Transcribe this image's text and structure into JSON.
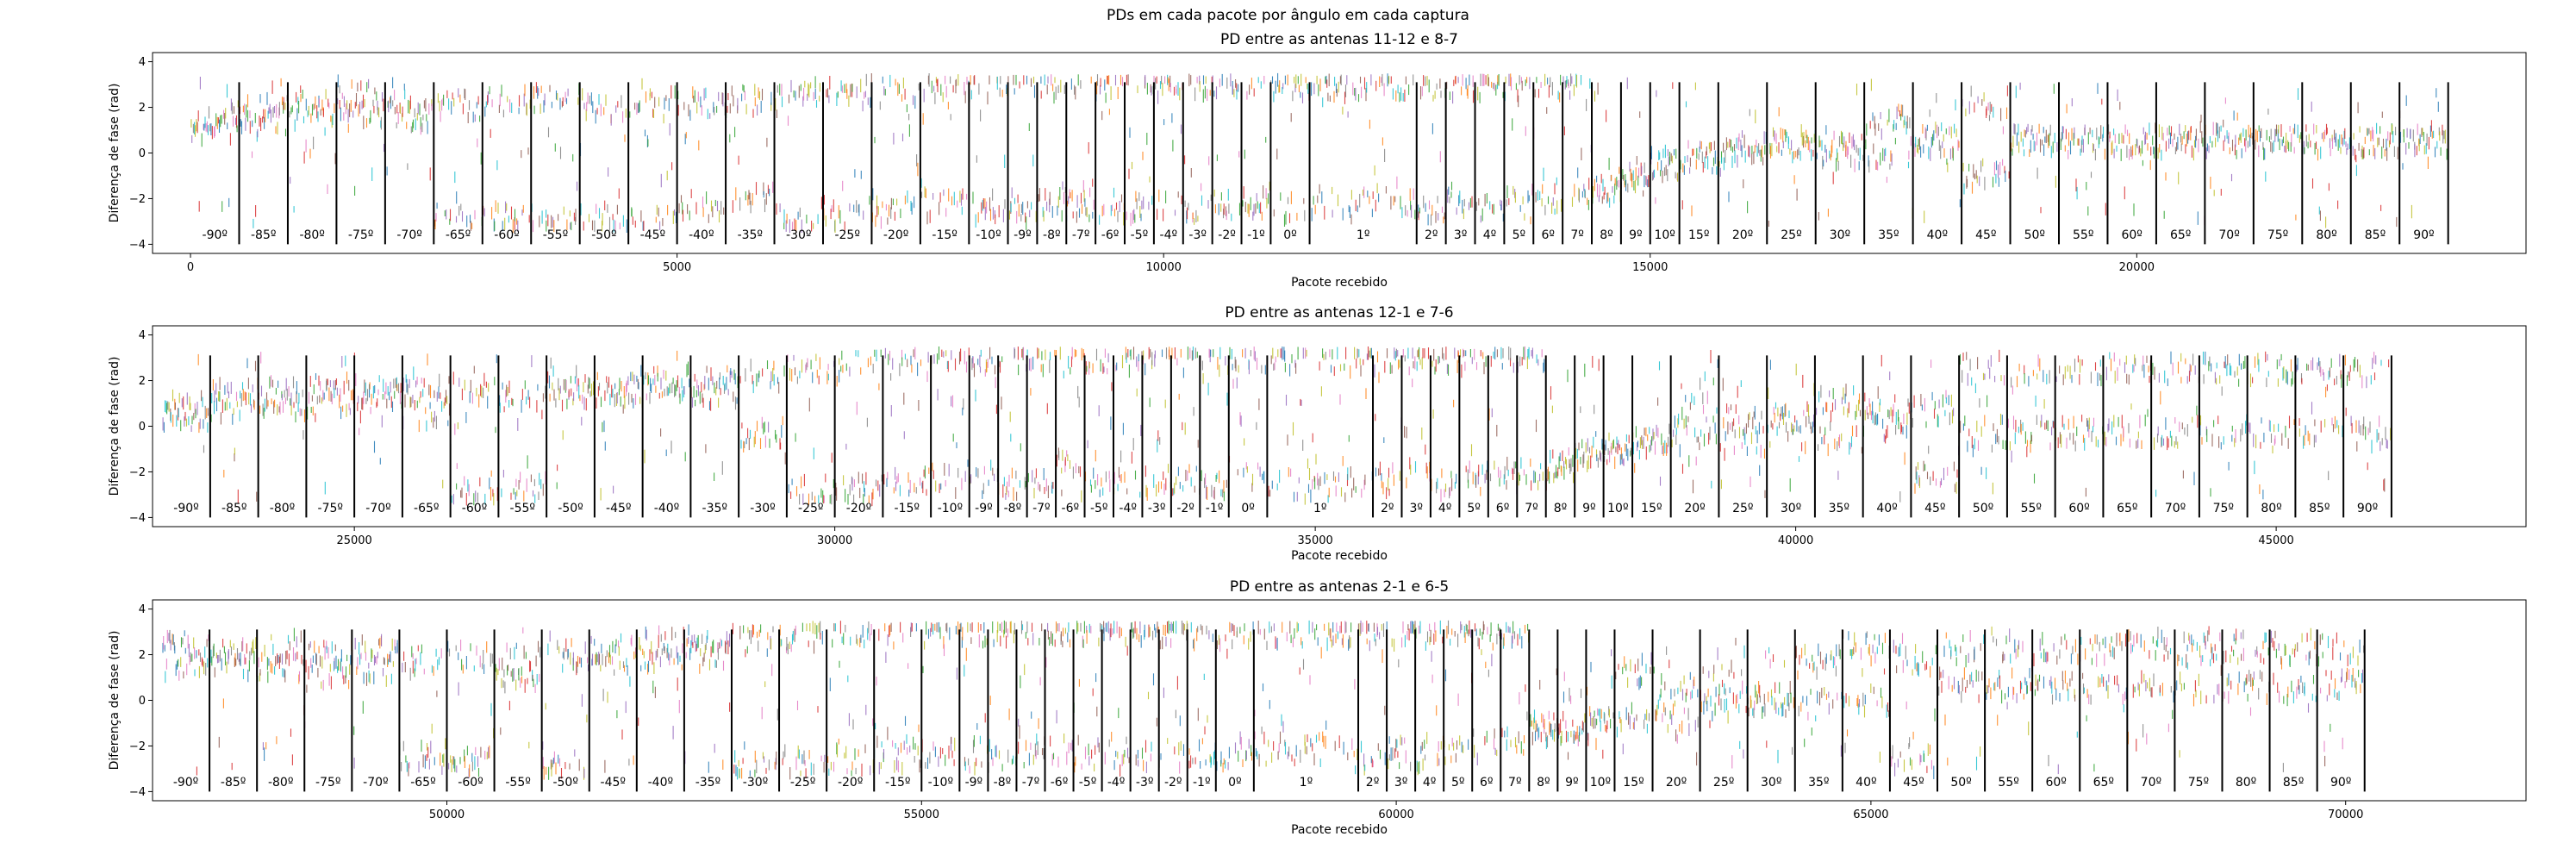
{
  "figure": {
    "suptitle": "PDs em cada pacote por ângulo em  cada captura"
  },
  "chart_data": [
    {
      "type": "scatter",
      "title": "PD entre as antenas 11-12 e 8-7",
      "xlabel": "Pacote recebido",
      "ylabel": "Diferença de fase (rad)",
      "xlim": [
        -390,
        24000
      ],
      "ylim": [
        -4.4,
        4.4
      ],
      "xticks": [
        0,
        5000,
        10000,
        15000,
        20000
      ],
      "yticks": [
        -4,
        -2,
        0,
        2,
        4
      ],
      "grid": false,
      "band_levels": [
        [
          1.0,
          1.6
        ],
        [
          1.4,
          2.1
        ],
        [
          1.7,
          2.2
        ],
        [
          1.7,
          2.6
        ],
        [
          1.5,
          2.3
        ],
        [
          2.1,
          -2.9
        ],
        [
          2.2,
          -2.9
        ],
        [
          2.3,
          -3.0
        ],
        [
          2.0,
          -3.0
        ],
        [
          2.1,
          -2.9
        ],
        [
          2.2,
          -2.3
        ],
        [
          2.3,
          -2.0
        ],
        [
          2.6,
          -3.0
        ],
        [
          2.7,
          -2.8
        ],
        [
          2.8,
          -2.5
        ],
        [
          3.0,
          -2.2
        ],
        [
          3.0,
          -2.4
        ],
        [
          3.0,
          -2.3
        ],
        [
          3.0,
          -2.2
        ],
        [
          3.0,
          -2.3
        ],
        [
          3.0,
          -2.5
        ],
        [
          3.0,
          -2.4
        ],
        [
          3.0,
          -2.3
        ],
        [
          3.0,
          -2.5
        ],
        [
          -2.3,
          3.0
        ],
        [
          -2.2,
          3.0
        ],
        [
          -2.4,
          3.0
        ],
        [
          -2.1,
          3.0
        ],
        [
          -2.5,
          3.0
        ],
        [
          -2.2,
          3.0
        ],
        [
          -2.3,
          3.0
        ],
        [
          -2.0,
          3.0
        ],
        [
          -2.1,
          3.0
        ],
        [
          -1.8,
          3.0
        ],
        [
          -1.6,
          -1.6
        ],
        [
          -1.2,
          -1.2
        ],
        [
          -0.5,
          -0.5
        ],
        [
          -0.2,
          -0.2
        ],
        [
          0.1,
          0.1
        ],
        [
          0.4,
          0.4
        ],
        [
          0.0,
          0.5
        ],
        [
          0.0,
          1.3
        ],
        [
          0.3,
          0.6
        ],
        [
          -1.0,
          2.0
        ],
        [
          0.5,
          0.5
        ]
      ],
      "angle_lines": [
        {
          "label": "-90º",
          "x": 500
        },
        {
          "label": "-85º",
          "x": 1000
        },
        {
          "label": "-80º",
          "x": 1500
        },
        {
          "label": "-75º",
          "x": 2000
        },
        {
          "label": "-70º",
          "x": 2500
        },
        {
          "label": "-65º",
          "x": 3000
        },
        {
          "label": "-60º",
          "x": 3500
        },
        {
          "label": "-55º",
          "x": 4000
        },
        {
          "label": "-50º",
          "x": 4500
        },
        {
          "label": "-45º",
          "x": 5000
        },
        {
          "label": "-40º",
          "x": 5500
        },
        {
          "label": "-35º",
          "x": 6000
        },
        {
          "label": "-30º",
          "x": 6500
        },
        {
          "label": "-25º",
          "x": 7000
        },
        {
          "label": "-20º",
          "x": 7500
        },
        {
          "label": "-15º",
          "x": 8000
        },
        {
          "label": "-10º",
          "x": 8400
        },
        {
          "label": "-9º",
          "x": 8700
        },
        {
          "label": "-8º",
          "x": 9000
        },
        {
          "label": "-7º",
          "x": 9300
        },
        {
          "label": "-6º",
          "x": 9600
        },
        {
          "label": "-5º",
          "x": 9900
        },
        {
          "label": "-4º",
          "x": 10200
        },
        {
          "label": "-3º",
          "x": 10500
        },
        {
          "label": "-2º",
          "x": 10800
        },
        {
          "label": "-1º",
          "x": 11100
        },
        {
          "label": "0º",
          "x": 11500
        },
        {
          "label": "1º",
          "x": 12600
        },
        {
          "label": "2º",
          "x": 12900
        },
        {
          "label": "3º",
          "x": 13200
        },
        {
          "label": "4º",
          "x": 13500
        },
        {
          "label": "5º",
          "x": 13800
        },
        {
          "label": "6º",
          "x": 14100
        },
        {
          "label": "7º",
          "x": 14400
        },
        {
          "label": "8º",
          "x": 14700
        },
        {
          "label": "9º",
          "x": 15000
        },
        {
          "label": "10º",
          "x": 15300
        },
        {
          "label": "15º",
          "x": 15700
        },
        {
          "label": "20º",
          "x": 16200
        },
        {
          "label": "25º",
          "x": 16700
        },
        {
          "label": "30º",
          "x": 17200
        },
        {
          "label": "35º",
          "x": 17700
        },
        {
          "label": "40º",
          "x": 18200
        },
        {
          "label": "45º",
          "x": 18700
        },
        {
          "label": "50º",
          "x": 19200
        },
        {
          "label": "55º",
          "x": 19700
        },
        {
          "label": "60º",
          "x": 20200
        },
        {
          "label": "65º",
          "x": 20700
        },
        {
          "label": "70º",
          "x": 21200
        },
        {
          "label": "75º",
          "x": 21700
        },
        {
          "label": "80º",
          "x": 22200
        },
        {
          "label": "85º",
          "x": 22700
        },
        {
          "label": "90º",
          "x": 23200
        }
      ]
    },
    {
      "type": "scatter",
      "title": "PD entre as antenas 12-1 e 7-6",
      "xlabel": "Pacote recebido",
      "ylabel": "Diferença de fase (rad)",
      "xlim": [
        22900,
        47600
      ],
      "ylim": [
        -4.4,
        4.4
      ],
      "xticks": [
        25000,
        30000,
        35000,
        40000,
        45000
      ],
      "yticks": [
        -4,
        -2,
        0,
        2,
        4
      ],
      "grid": false,
      "band_levels": [
        [
          0.5,
          0.8
        ],
        [
          0.9,
          1.3
        ],
        [
          1.0,
          1.4
        ],
        [
          1.1,
          1.6
        ],
        [
          1.2,
          1.7
        ],
        [
          1.5,
          0.6
        ],
        [
          1.6,
          -2.8
        ],
        [
          1.3,
          -2.6
        ],
        [
          1.5,
          1.8
        ],
        [
          1.7,
          1.6
        ],
        [
          1.9,
          1.8
        ],
        [
          2.0,
          1.5
        ],
        [
          2.1,
          -0.3
        ],
        [
          2.5,
          -3.0
        ],
        [
          2.8,
          -2.8
        ],
        [
          3.0,
          -2.4
        ],
        [
          3.0,
          -2.2
        ],
        [
          3.0,
          -2.3
        ],
        [
          3.0,
          -2.5
        ],
        [
          3.0,
          -2.4
        ],
        [
          3.0,
          -1.6
        ],
        [
          3.0,
          -2.3
        ],
        [
          3.0,
          -2.5
        ],
        [
          3.0,
          -2.4
        ],
        [
          -2.4,
          2.9
        ],
        [
          -2.5,
          3.0
        ],
        [
          -2.3,
          3.0
        ],
        [
          -2.6,
          3.0
        ],
        [
          -2.4,
          3.0
        ],
        [
          -2.2,
          3.0
        ],
        [
          -2.5,
          3.0
        ],
        [
          -2.3,
          3.0
        ],
        [
          -2.2,
          3.0
        ],
        [
          -2.0,
          3.0
        ],
        [
          -1.7,
          -1.7
        ],
        [
          -1.3,
          -1.3
        ],
        [
          -1.0,
          -1.0
        ],
        [
          -0.7,
          -0.7
        ],
        [
          0.8,
          -0.2
        ],
        [
          0.3,
          -0.6
        ],
        [
          0.4,
          -0.5
        ],
        [
          -0.5,
          1.0
        ],
        [
          0.0,
          0.7
        ],
        [
          -2.3,
          0.6
        ],
        [
          -0.3,
          2.5
        ]
      ],
      "angle_lines": [
        {
          "label": "-90º",
          "x": 23500
        },
        {
          "label": "-85º",
          "x": 24000
        },
        {
          "label": "-80º",
          "x": 24500
        },
        {
          "label": "-75º",
          "x": 25000
        },
        {
          "label": "-70º",
          "x": 25500
        },
        {
          "label": "-65º",
          "x": 26000
        },
        {
          "label": "-60º",
          "x": 26500
        },
        {
          "label": "-55º",
          "x": 27000
        },
        {
          "label": "-50º",
          "x": 27500
        },
        {
          "label": "-45º",
          "x": 28000
        },
        {
          "label": "-40º",
          "x": 28500
        },
        {
          "label": "-35º",
          "x": 29000
        },
        {
          "label": "-30º",
          "x": 29500
        },
        {
          "label": "-25º",
          "x": 30000
        },
        {
          "label": "-20º",
          "x": 30500
        },
        {
          "label": "-15º",
          "x": 31000
        },
        {
          "label": "-10º",
          "x": 31400
        },
        {
          "label": "-9º",
          "x": 31700
        },
        {
          "label": "-8º",
          "x": 32000
        },
        {
          "label": "-7º",
          "x": 32300
        },
        {
          "label": "-6º",
          "x": 32600
        },
        {
          "label": "-5º",
          "x": 32900
        },
        {
          "label": "-4º",
          "x": 33200
        },
        {
          "label": "-3º",
          "x": 33500
        },
        {
          "label": "-2º",
          "x": 33800
        },
        {
          "label": "-1º",
          "x": 34100
        },
        {
          "label": "0º",
          "x": 34500
        },
        {
          "label": "1º",
          "x": 35600
        },
        {
          "label": "2º",
          "x": 35900
        },
        {
          "label": "3º",
          "x": 36200
        },
        {
          "label": "4º",
          "x": 36500
        },
        {
          "label": "5º",
          "x": 36800
        },
        {
          "label": "6º",
          "x": 37100
        },
        {
          "label": "7º",
          "x": 37400
        },
        {
          "label": "8º",
          "x": 37700
        },
        {
          "label": "9º",
          "x": 38000
        },
        {
          "label": "10º",
          "x": 38300
        },
        {
          "label": "15º",
          "x": 38700
        },
        {
          "label": "20º",
          "x": 39200
        },
        {
          "label": "25º",
          "x": 39700
        },
        {
          "label": "30º",
          "x": 40200
        },
        {
          "label": "35º",
          "x": 40700
        },
        {
          "label": "40º",
          "x": 41200
        },
        {
          "label": "45º",
          "x": 41700
        },
        {
          "label": "50º",
          "x": 42200
        },
        {
          "label": "55º",
          "x": 42700
        },
        {
          "label": "60º",
          "x": 43200
        },
        {
          "label": "65º",
          "x": 43700
        },
        {
          "label": "70º",
          "x": 44200
        },
        {
          "label": "75º",
          "x": 44700
        },
        {
          "label": "80º",
          "x": 45200
        },
        {
          "label": "85º",
          "x": 45700
        },
        {
          "label": "90º",
          "x": 46200
        }
      ]
    },
    {
      "type": "scatter",
      "title": "PD entre as antenas 2-1 e 6-5",
      "xlabel": "Pacote recebido",
      "ylabel": "Diferença de fase (rad)",
      "xlim": [
        46900,
        71900
      ],
      "ylim": [
        -4.4,
        4.4
      ],
      "xticks": [
        50000,
        55000,
        60000,
        65000,
        70000
      ],
      "yticks": [
        -4,
        -2,
        0,
        2,
        4
      ],
      "grid": false,
      "band_levels": [
        [
          1.6,
          2.2
        ],
        [
          1.6,
          2.0
        ],
        [
          1.5,
          2.2
        ],
        [
          1.2,
          1.9
        ],
        [
          1.4,
          2.1
        ],
        [
          1.7,
          -2.6
        ],
        [
          1.9,
          -2.7
        ],
        [
          1.8,
          1.1
        ],
        [
          2.0,
          -2.9
        ],
        [
          2.2,
          1.7
        ],
        [
          2.4,
          1.8
        ],
        [
          2.5,
          1.9
        ],
        [
          2.6,
          -2.9
        ],
        [
          2.8,
          -2.8
        ],
        [
          3.0,
          -2.6
        ],
        [
          3.0,
          -2.4
        ],
        [
          3.0,
          -2.3
        ],
        [
          3.0,
          -2.5
        ],
        [
          3.0,
          -2.4
        ],
        [
          3.0,
          -2.3
        ],
        [
          3.0,
          -2.2
        ],
        [
          3.0,
          -2.4
        ],
        [
          3.0,
          -2.3
        ],
        [
          3.0,
          -2.5
        ],
        [
          -2.2,
          3.0
        ],
        [
          -2.3,
          3.0
        ],
        [
          -2.4,
          3.0
        ],
        [
          -2.2,
          3.0
        ],
        [
          -2.5,
          3.0
        ],
        [
          -2.3,
          3.0
        ],
        [
          -2.4,
          3.0
        ],
        [
          -2.2,
          3.0
        ],
        [
          -2.0,
          3.0
        ],
        [
          -1.8,
          3.0
        ],
        [
          -1.3,
          -1.3
        ],
        [
          -1.2,
          -1.2
        ],
        [
          -1.0,
          -1.0
        ],
        [
          -0.8,
          1.3
        ],
        [
          -0.7,
          0.4
        ],
        [
          -0.2,
          0.9
        ],
        [
          0.0,
          0.0
        ],
        [
          -0.2,
          1.7
        ],
        [
          0.0,
          2.3
        ],
        [
          -2.6,
          1.8
        ],
        [
          0.6,
          2.3
        ]
      ],
      "angle_lines": [
        {
          "label": "-90º",
          "x": 47500
        },
        {
          "label": "-85º",
          "x": 48000
        },
        {
          "label": "-80º",
          "x": 48500
        },
        {
          "label": "-75º",
          "x": 49000
        },
        {
          "label": "-70º",
          "x": 49500
        },
        {
          "label": "-65º",
          "x": 50000
        },
        {
          "label": "-60º",
          "x": 50500
        },
        {
          "label": "-55º",
          "x": 51000
        },
        {
          "label": "-50º",
          "x": 51500
        },
        {
          "label": "-45º",
          "x": 52000
        },
        {
          "label": "-40º",
          "x": 52500
        },
        {
          "label": "-35º",
          "x": 53000
        },
        {
          "label": "-30º",
          "x": 53500
        },
        {
          "label": "-25º",
          "x": 54000
        },
        {
          "label": "-20º",
          "x": 54500
        },
        {
          "label": "-15º",
          "x": 55000
        },
        {
          "label": "-10º",
          "x": 55400
        },
        {
          "label": "-9º",
          "x": 55700
        },
        {
          "label": "-8º",
          "x": 56000
        },
        {
          "label": "-7º",
          "x": 56300
        },
        {
          "label": "-6º",
          "x": 56600
        },
        {
          "label": "-5º",
          "x": 56900
        },
        {
          "label": "-4º",
          "x": 57200
        },
        {
          "label": "-3º",
          "x": 57500
        },
        {
          "label": "-2º",
          "x": 57800
        },
        {
          "label": "-1º",
          "x": 58100
        },
        {
          "label": "0º",
          "x": 58500
        },
        {
          "label": "1º",
          "x": 59600
        },
        {
          "label": "2º",
          "x": 59900
        },
        {
          "label": "3º",
          "x": 60200
        },
        {
          "label": "4º",
          "x": 60500
        },
        {
          "label": "5º",
          "x": 60800
        },
        {
          "label": "6º",
          "x": 61100
        },
        {
          "label": "7º",
          "x": 61400
        },
        {
          "label": "8º",
          "x": 61700
        },
        {
          "label": "9º",
          "x": 62000
        },
        {
          "label": "10º",
          "x": 62300
        },
        {
          "label": "15º",
          "x": 62700
        },
        {
          "label": "20º",
          "x": 63200
        },
        {
          "label": "25º",
          "x": 63700
        },
        {
          "label": "30º",
          "x": 64200
        },
        {
          "label": "35º",
          "x": 64700
        },
        {
          "label": "40º",
          "x": 65200
        },
        {
          "label": "45º",
          "x": 65700
        },
        {
          "label": "50º",
          "x": 66200
        },
        {
          "label": "55º",
          "x": 66700
        },
        {
          "label": "60º",
          "x": 67200
        },
        {
          "label": "65º",
          "x": 67700
        },
        {
          "label": "70º",
          "x": 68200
        },
        {
          "label": "75º",
          "x": 68700
        },
        {
          "label": "80º",
          "x": 69200
        },
        {
          "label": "85º",
          "x": 69700
        },
        {
          "label": "90º",
          "x": 70200
        }
      ]
    }
  ],
  "palette": [
    "#1f77b4",
    "#ff7f0e",
    "#2ca02c",
    "#d62728",
    "#9467bd",
    "#8c564b",
    "#e377c2",
    "#7f7f7f",
    "#bcbd22",
    "#17becf"
  ]
}
